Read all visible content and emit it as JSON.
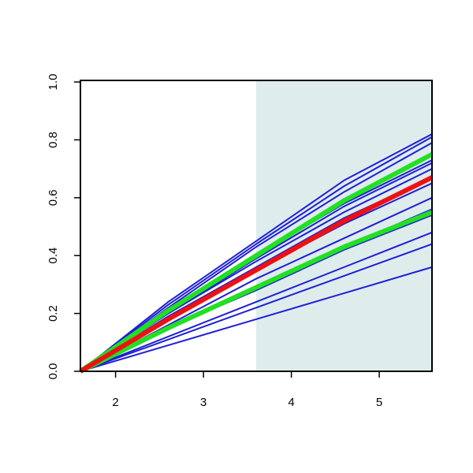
{
  "chart_data": {
    "type": "line",
    "x": [
      1.6,
      2.6,
      3.6,
      4.6,
      5.6
    ],
    "xlim": [
      1.6,
      5.6
    ],
    "ylim": [
      0,
      1
    ],
    "xticks": [
      2,
      3,
      4,
      5
    ],
    "yticks": [
      {
        "value": 0,
        "label": "0.0"
      },
      {
        "value": 0.2,
        "label": "0.2"
      },
      {
        "value": 0.4,
        "label": "0.4"
      },
      {
        "value": 0.6,
        "label": "0.6"
      },
      {
        "value": 0.8,
        "label": "0.8"
      },
      {
        "value": 1,
        "label": "1.0"
      }
    ],
    "shade": [
      3.6,
      5.6
    ],
    "shade_color": "#deecec",
    "series": [
      {
        "color": "#1f1fd6",
        "values": [
          0,
          0.24,
          0.45,
          0.66,
          0.82
        ]
      },
      {
        "color": "#1f1fd6",
        "values": [
          0,
          0.23,
          0.44,
          0.64,
          0.81
        ]
      },
      {
        "color": "#1f1fd6",
        "values": [
          0,
          0.22,
          0.43,
          0.62,
          0.79
        ]
      },
      {
        "color": "#1f1fd6",
        "values": [
          0,
          0.21,
          0.4,
          0.58,
          0.73
        ]
      },
      {
        "color": "#1f1fd6",
        "values": [
          0,
          0.2,
          0.39,
          0.57,
          0.72
        ]
      },
      {
        "color": "#1f1fd6",
        "values": [
          0,
          0.2,
          0.38,
          0.55,
          0.7
        ]
      },
      {
        "color": "#1f1fd6",
        "values": [
          0,
          0.19,
          0.36,
          0.53,
          0.67
        ]
      },
      {
        "color": "#1f1fd6",
        "values": [
          0,
          0.18,
          0.35,
          0.51,
          0.65
        ]
      },
      {
        "color": "#1f1fd6",
        "values": [
          0,
          0.16,
          0.32,
          0.46,
          0.6
        ]
      },
      {
        "color": "#1f1fd6",
        "values": [
          0,
          0.15,
          0.29,
          0.43,
          0.56
        ]
      },
      {
        "color": "#1f1fd6",
        "values": [
          0,
          0.15,
          0.28,
          0.42,
          0.54
        ]
      },
      {
        "color": "#1f1fd6",
        "values": [
          0,
          0.12,
          0.24,
          0.36,
          0.48
        ]
      },
      {
        "color": "#1f1fd6",
        "values": [
          0,
          0.11,
          0.22,
          0.33,
          0.44
        ]
      },
      {
        "color": "#1f1fd6",
        "values": [
          0,
          0.09,
          0.18,
          0.27,
          0.36
        ]
      },
      {
        "color": "#22e022",
        "values": [
          0,
          0.21,
          0.4,
          0.59,
          0.75
        ]
      },
      {
        "color": "#22e022",
        "values": [
          0,
          0.15,
          0.29,
          0.43,
          0.55
        ]
      },
      {
        "color": "#ee1111",
        "values": [
          0,
          0.18,
          0.35,
          0.52,
          0.67
        ]
      }
    ]
  }
}
